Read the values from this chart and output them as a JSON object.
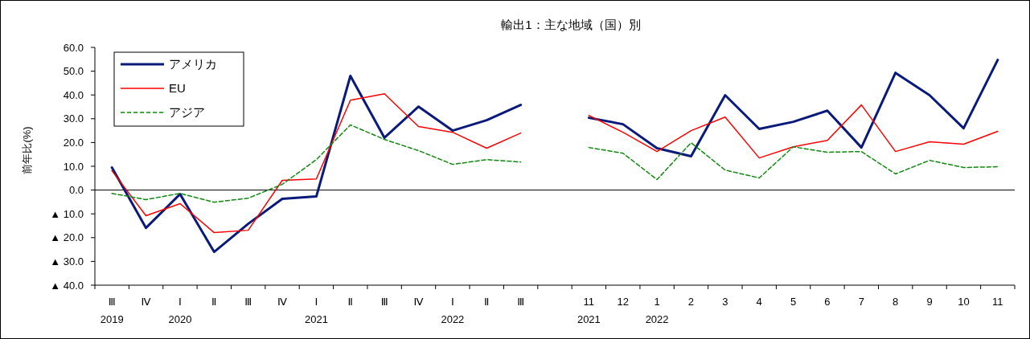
{
  "chart_data": {
    "type": "line",
    "title": "輸出1：主な地域（国）別",
    "ylabel": "前年比(%)",
    "categories": [
      "Ⅲ\n2019",
      "Ⅳ",
      "Ⅰ\n2020",
      "Ⅱ",
      "Ⅲ",
      "Ⅳ",
      "Ⅰ\n2021",
      "Ⅱ",
      "Ⅲ",
      "Ⅳ",
      "Ⅰ\n2022",
      "Ⅱ",
      "Ⅲ",
      null,
      "11\n2021",
      "12",
      "1\n2022",
      "2",
      "3",
      "4",
      "5",
      "6",
      "7",
      "8",
      "9",
      "10",
      "11"
    ],
    "series": [
      {
        "name": "アメリカ",
        "color": "#0a1a7a",
        "line_style": "solid",
        "values": [
          9.5,
          -15.9,
          -1.7,
          -26,
          -14.2,
          -3.7,
          -2.7,
          48,
          22,
          35.1,
          25,
          29.4,
          35.8,
          null,
          30.4,
          27.7,
          17.6,
          14.2,
          39.9,
          25.7,
          28.7,
          33.4,
          17.9,
          49.3,
          39.9,
          26,
          54.7
        ]
      },
      {
        "name": "EU",
        "color": "#ff0000",
        "line_style": "solid",
        "values": [
          8.1,
          -10.8,
          -5.7,
          -17.9,
          -16.9,
          4.1,
          4.7,
          37.8,
          40.5,
          26.7,
          24.3,
          17.6,
          24,
          null,
          31.4,
          24.3,
          16.2,
          25,
          30.7,
          13.5,
          18.2,
          20.9,
          35.8,
          16.2,
          20.3,
          19.3,
          24.7
        ]
      },
      {
        "name": "アジア",
        "color": "#118811",
        "line_style": "dashed",
        "values": [
          -1.4,
          -4,
          -1.4,
          -5.1,
          -3.4,
          2.4,
          12.8,
          27.4,
          21.3,
          16.6,
          10.8,
          12.8,
          11.8,
          null,
          17.9,
          15.5,
          4.4,
          19.9,
          8.4,
          5.1,
          18.2,
          15.9,
          16.2,
          6.8,
          12.5,
          9.5,
          9.8
        ]
      }
    ],
    "ylim": [
      -40,
      60
    ],
    "yticks": [
      {
        "value": -40,
        "label": "▲ 40.0"
      },
      {
        "value": -30,
        "label": "▲ 30.0"
      },
      {
        "value": -20,
        "label": "▲ 20.0"
      },
      {
        "value": -10,
        "label": "▲ 10.0"
      },
      {
        "value": 0,
        "label": "0.0"
      },
      {
        "value": 10,
        "label": "10.0"
      },
      {
        "value": 20,
        "label": "20.0"
      },
      {
        "value": 30,
        "label": "30.0"
      },
      {
        "value": 40,
        "label": "40.0"
      },
      {
        "value": 50,
        "label": "50.0"
      },
      {
        "value": 60,
        "label": "60.0"
      }
    ],
    "ref_lines": [
      {
        "axis": "y",
        "value": 0,
        "color": "#000000"
      }
    ],
    "legend": "top left",
    "marker": "none",
    "grid": false
  }
}
